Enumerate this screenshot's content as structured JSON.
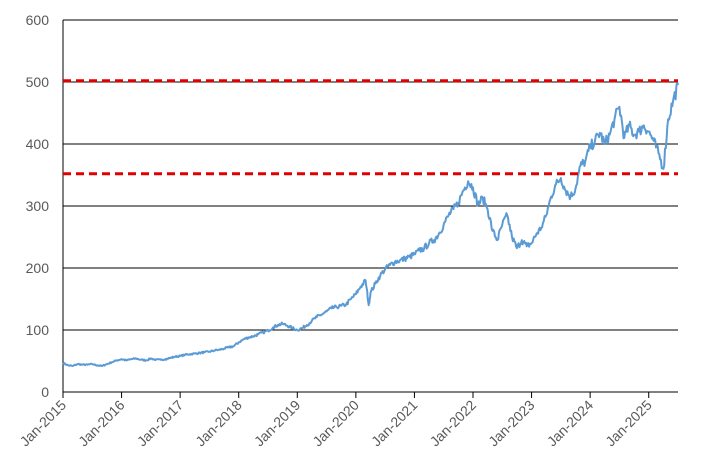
{
  "chart_data": {
    "type": "line",
    "title": "",
    "xlabel": "",
    "ylabel": "",
    "ylim": [
      0,
      600
    ],
    "xlim": [
      "2015-01",
      "2025-07"
    ],
    "grid": "horizontal",
    "legend": "none",
    "yticks": [
      "0",
      "100",
      "200",
      "300",
      "400",
      "500",
      "600"
    ],
    "xticks": [
      {
        "date": "2015-01",
        "label": "Jan-2015"
      },
      {
        "date": "2016-01",
        "label": "Jan-2016"
      },
      {
        "date": "2017-01",
        "label": "Jan-2017"
      },
      {
        "date": "2018-01",
        "label": "Jan-2018"
      },
      {
        "date": "2019-01",
        "label": "Jan-2019"
      },
      {
        "date": "2020-01",
        "label": "Jan-2020"
      },
      {
        "date": "2021-01",
        "label": "Jan-2021"
      },
      {
        "date": "2022-01",
        "label": "Jan-2022"
      },
      {
        "date": "2023-01",
        "label": "Jan-2023"
      },
      {
        "date": "2024-01",
        "label": "Jan-2024"
      },
      {
        "date": "2025-01",
        "label": "Jan-2025"
      }
    ],
    "series": [
      {
        "color": "#5b9bd5",
        "points": [
          [
            "2015-01",
            47
          ],
          [
            "2015-02",
            43
          ],
          [
            "2015-03",
            42
          ],
          [
            "2015-04",
            45
          ],
          [
            "2015-05",
            44
          ],
          [
            "2015-06",
            44
          ],
          [
            "2015-07",
            45
          ],
          [
            "2015-08",
            43
          ],
          [
            "2015-09",
            42
          ],
          [
            "2015-10",
            45
          ],
          [
            "2015-11",
            48
          ],
          [
            "2015-12",
            51
          ],
          [
            "2016-01",
            53
          ],
          [
            "2016-02",
            51
          ],
          [
            "2016-03",
            53
          ],
          [
            "2016-04",
            54
          ],
          [
            "2016-05",
            52
          ],
          [
            "2016-06",
            51
          ],
          [
            "2016-07",
            54
          ],
          [
            "2016-08",
            52
          ],
          [
            "2016-09",
            52
          ],
          [
            "2016-10",
            53
          ],
          [
            "2016-11",
            55
          ],
          [
            "2016-12",
            57
          ],
          [
            "2017-01",
            58
          ],
          [
            "2017-02",
            60
          ],
          [
            "2017-03",
            61
          ],
          [
            "2017-04",
            62
          ],
          [
            "2017-05",
            63
          ],
          [
            "2017-06",
            64
          ],
          [
            "2017-07",
            65
          ],
          [
            "2017-08",
            67
          ],
          [
            "2017-09",
            68
          ],
          [
            "2017-10",
            70
          ],
          [
            "2017-11",
            72
          ],
          [
            "2017-12",
            74
          ],
          [
            "2018-01",
            80
          ],
          [
            "2018-02",
            85
          ],
          [
            "2018-03",
            88
          ],
          [
            "2018-04",
            90
          ],
          [
            "2018-05",
            93
          ],
          [
            "2018-06",
            96
          ],
          [
            "2018-07",
            99
          ],
          [
            "2018-08",
            104
          ],
          [
            "2018-09",
            108
          ],
          [
            "2018-10",
            110
          ],
          [
            "2018-11",
            107
          ],
          [
            "2018-12",
            103
          ],
          [
            "2019-01",
            100
          ],
          [
            "2019-02",
            103
          ],
          [
            "2019-03",
            108
          ],
          [
            "2019-04",
            115
          ],
          [
            "2019-05",
            121
          ],
          [
            "2019-06",
            125
          ],
          [
            "2019-07",
            130
          ],
          [
            "2019-08",
            135
          ],
          [
            "2019-09",
            137
          ],
          [
            "2019-10",
            139
          ],
          [
            "2019-11",
            141
          ],
          [
            "2019-12",
            150
          ],
          [
            "2020-01",
            158
          ],
          [
            "2020-02",
            170
          ],
          [
            "2020-03",
            180
          ],
          [
            "2020-03-20",
            140
          ],
          [
            "2020-04",
            160
          ],
          [
            "2020-05",
            175
          ],
          [
            "2020-06",
            188
          ],
          [
            "2020-07",
            198
          ],
          [
            "2020-08",
            205
          ],
          [
            "2020-09",
            210
          ],
          [
            "2020-10",
            212
          ],
          [
            "2020-11",
            215
          ],
          [
            "2020-12",
            218
          ],
          [
            "2021-01",
            222
          ],
          [
            "2021-02",
            228
          ],
          [
            "2021-03",
            232
          ],
          [
            "2021-04",
            240
          ],
          [
            "2021-05",
            245
          ],
          [
            "2021-06",
            255
          ],
          [
            "2021-07",
            270
          ],
          [
            "2021-08",
            285
          ],
          [
            "2021-09",
            295
          ],
          [
            "2021-10",
            305
          ],
          [
            "2021-11",
            325
          ],
          [
            "2021-12",
            340
          ],
          [
            "2022-01",
            330
          ],
          [
            "2022-02",
            302
          ],
          [
            "2022-03",
            313
          ],
          [
            "2022-04",
            295
          ],
          [
            "2022-05",
            260
          ],
          [
            "2022-06",
            245
          ],
          [
            "2022-07",
            270
          ],
          [
            "2022-08",
            285
          ],
          [
            "2022-09",
            250
          ],
          [
            "2022-10",
            232
          ],
          [
            "2022-11",
            245
          ],
          [
            "2022-12",
            235
          ],
          [
            "2023-01",
            240
          ],
          [
            "2023-02",
            255
          ],
          [
            "2023-03",
            265
          ],
          [
            "2023-04",
            285
          ],
          [
            "2023-05",
            315
          ],
          [
            "2023-06",
            335
          ],
          [
            "2023-07",
            345
          ],
          [
            "2023-08",
            325
          ],
          [
            "2023-09",
            315
          ],
          [
            "2023-10",
            328
          ],
          [
            "2023-11",
            365
          ],
          [
            "2023-12",
            372
          ],
          [
            "2024-01",
            395
          ],
          [
            "2024-02",
            405
          ],
          [
            "2024-03",
            418
          ],
          [
            "2024-04",
            400
          ],
          [
            "2024-05",
            415
          ],
          [
            "2024-06",
            440
          ],
          [
            "2024-07",
            460
          ],
          [
            "2024-08",
            410
          ],
          [
            "2024-09",
            430
          ],
          [
            "2024-10",
            415
          ],
          [
            "2024-11",
            420
          ],
          [
            "2024-12",
            430
          ],
          [
            "2025-01",
            420
          ],
          [
            "2025-02",
            405
          ],
          [
            "2025-03",
            385
          ],
          [
            "2025-04",
            360
          ],
          [
            "2025-05",
            440
          ],
          [
            "2025-06",
            470
          ],
          [
            "2025-07",
            495
          ]
        ]
      }
    ],
    "reference_lines": [
      {
        "y": 502,
        "color": "#e00000",
        "style": "dashed"
      },
      {
        "y": 352,
        "color": "#e00000",
        "style": "dashed"
      }
    ]
  }
}
